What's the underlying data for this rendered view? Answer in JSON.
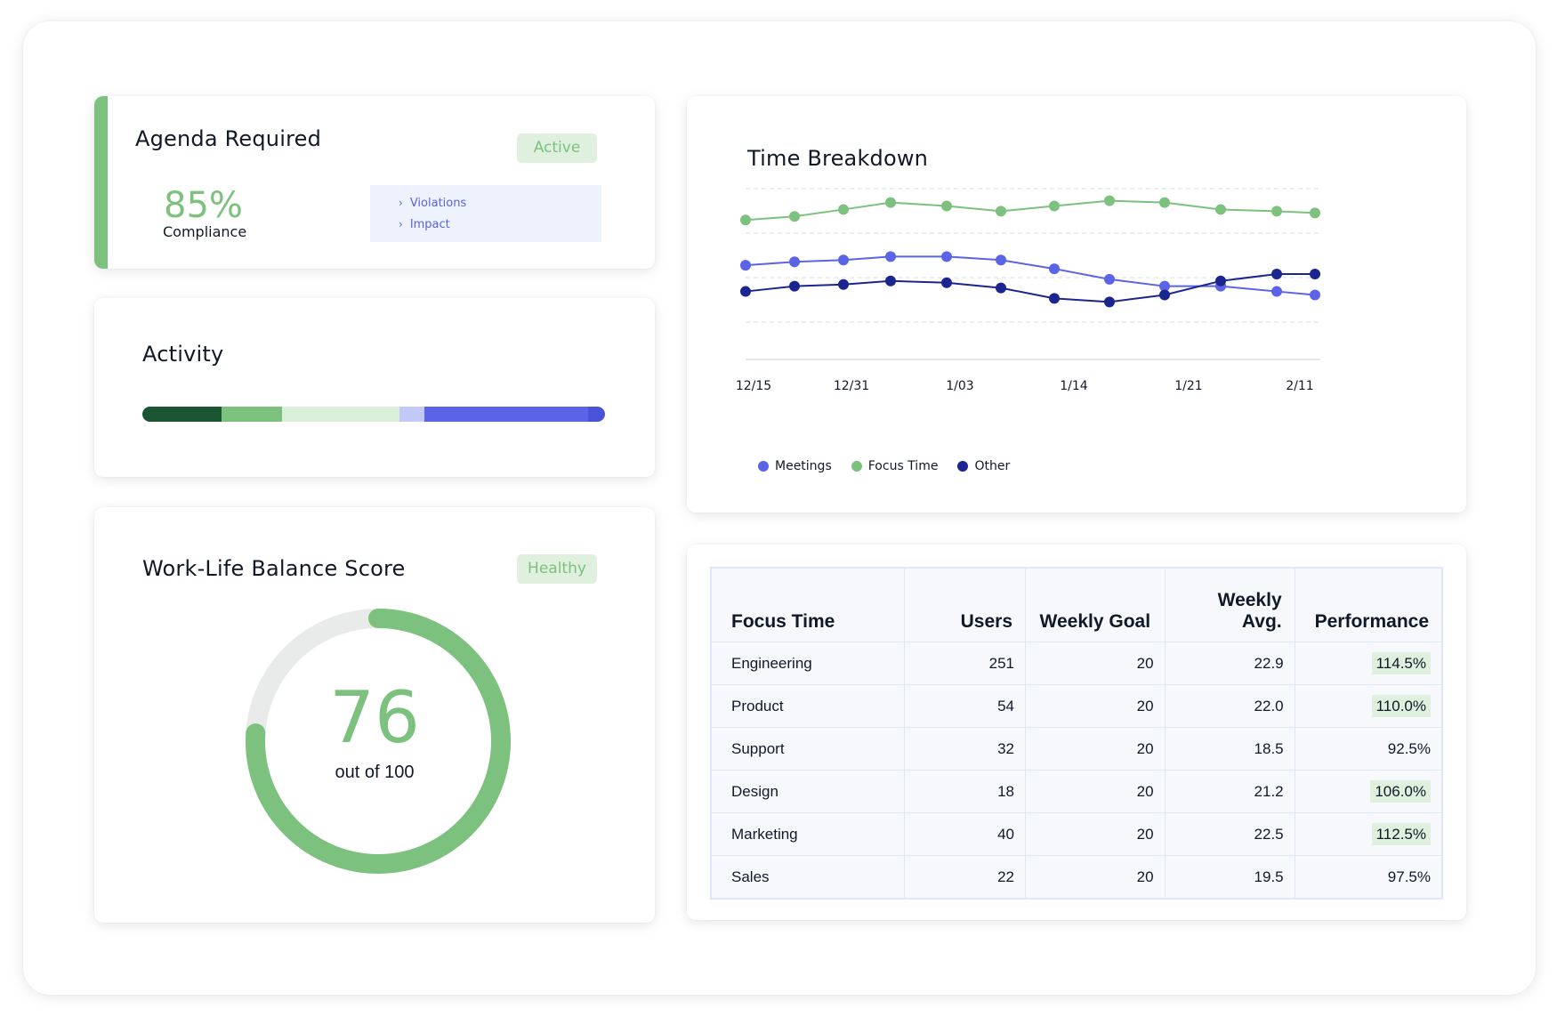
{
  "agenda": {
    "title": "Agenda Required",
    "badge": "Active",
    "compliance_value": "85%",
    "compliance_label": "Compliance",
    "links": [
      "Violations",
      "Impact"
    ]
  },
  "activity": {
    "title": "Activity",
    "segments": [
      {
        "fraction": 0.172,
        "color": "#1a5632"
      },
      {
        "fraction": 0.13,
        "color": "#7cc17e"
      },
      {
        "fraction": 0.253,
        "color": "#d9efd8"
      },
      {
        "fraction": 0.054,
        "color": "#c3c9f6"
      },
      {
        "fraction": 0.355,
        "color": "#5b63e6"
      },
      {
        "fraction": 0.036,
        "color": "#4a52da"
      }
    ]
  },
  "score": {
    "title": "Work-Life Balance Score",
    "badge": "Healthy",
    "value": "76",
    "subtitle": "out of 100",
    "fraction": 0.76,
    "color": "#7cc17e",
    "track_color": "#e9ebea"
  },
  "chart": {
    "title": "Time Breakdown",
    "x_labels": [
      "12/15",
      "12/31",
      "1/03",
      "1/14",
      "1/21",
      "2/11"
    ],
    "legend": [
      "Meetings",
      "Focus Time",
      "Other"
    ]
  },
  "chart_data": {
    "type": "line",
    "title": "Time Breakdown",
    "x": [
      "12/15",
      "",
      "12/31",
      "",
      "1/03",
      "",
      "",
      "1/14",
      "",
      "1/21",
      "",
      "2/11"
    ],
    "ylim": [
      0,
      100
    ],
    "grid": true,
    "legend_position": "bottom-left",
    "series": [
      {
        "name": "Meetings",
        "color": "#5b63e6",
        "values": [
          54,
          56,
          57,
          59,
          59,
          57,
          52,
          46,
          42,
          42,
          39,
          37
        ]
      },
      {
        "name": "Focus Time",
        "color": "#7cc17e",
        "values": [
          80,
          82,
          86,
          90,
          88,
          85,
          88,
          91,
          90,
          86,
          85,
          84
        ]
      },
      {
        "name": "Other",
        "color": "#1b2590",
        "values": [
          39,
          42,
          43,
          45,
          44,
          41,
          35,
          33,
          37,
          45,
          49,
          49
        ]
      }
    ]
  },
  "table": {
    "headers": [
      "Focus Time",
      "Users",
      "Weekly Goal",
      "Weekly Avg.",
      "Performance"
    ],
    "rows": [
      {
        "name": "Engineering",
        "users": "251",
        "goal": "20",
        "avg": "22.9",
        "perf": "114.5%",
        "highlight": true
      },
      {
        "name": "Product",
        "users": "54",
        "goal": "20",
        "avg": "22.0",
        "perf": "110.0%",
        "highlight": true
      },
      {
        "name": "Support",
        "users": "32",
        "goal": "20",
        "avg": "18.5",
        "perf": "92.5%",
        "highlight": false
      },
      {
        "name": "Design",
        "users": "18",
        "goal": "20",
        "avg": "21.2",
        "perf": "106.0%",
        "highlight": true
      },
      {
        "name": "Marketing",
        "users": "40",
        "goal": "20",
        "avg": "22.5",
        "perf": "112.5%",
        "highlight": true
      },
      {
        "name": "Sales",
        "users": "22",
        "goal": "20",
        "avg": "19.5",
        "perf": "97.5%",
        "highlight": false
      }
    ],
    "highlight_color": "#dff0df"
  }
}
